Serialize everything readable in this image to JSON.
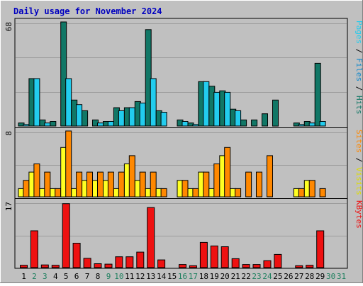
{
  "colors": {
    "page_background": "#c0c0c0",
    "panel_background": "#c0c0c0",
    "grid": "#9c9c9c",
    "title": "#0000c0",
    "axis_text": "#000000",
    "weekend_day": "#208060",
    "hits": "#117766",
    "pages": "#22ccee",
    "files": "#22ccee",
    "visits": "#ffff22",
    "sites": "#ff8800",
    "kbytes": "#ee1111",
    "hits_label": "#117766",
    "files_label": "#1188cc",
    "pages_label": "#22ccee",
    "visits_label": "#dddd00",
    "sites_label": "#ff8800",
    "kbytes_label": "#ee1111",
    "separator": "#000000"
  },
  "chart_data": {
    "type": "bar",
    "title": "Daily usage for November 2024",
    "x": [
      1,
      2,
      3,
      4,
      5,
      6,
      7,
      8,
      9,
      10,
      11,
      12,
      13,
      14,
      15,
      16,
      17,
      18,
      19,
      20,
      21,
      22,
      23,
      24,
      25,
      26,
      27,
      28,
      29,
      30,
      31
    ],
    "weekend_days": [
      2,
      3,
      9,
      10,
      16,
      17,
      23,
      24,
      30,
      31
    ],
    "panels": [
      {
        "name": "hits_files_pages",
        "ymax_label": "68",
        "ylim": [
          0,
          68
        ],
        "right_labels": [
          "Hits",
          "Files",
          "Pages"
        ],
        "series": [
          {
            "name": "Hits",
            "values": [
              2,
              31,
              4,
              3,
              68,
              17,
              10,
              4,
              3,
              12,
              12,
              16,
              63,
              10,
              0,
              4,
              2,
              29,
              26,
              23,
              11,
              4,
              4,
              8,
              17,
              0,
              2,
              3,
              41,
              0,
              0
            ]
          },
          {
            "name": "Files",
            "values": [
              0,
              0,
              0,
              0,
              0,
              0,
              0,
              0,
              0,
              0,
              0,
              0,
              0,
              0,
              0,
              0,
              0,
              0,
              0,
              0,
              0,
              0,
              0,
              0,
              0,
              0,
              0,
              0,
              0,
              0,
              0
            ]
          },
          {
            "name": "Pages",
            "values": [
              1,
              31,
              2,
              0,
              31,
              14,
              0,
              2,
              3,
              10,
              12,
              15,
              31,
              9,
              0,
              3,
              1,
              29,
              22,
              22,
              10,
              0,
              0,
              0,
              0,
              0,
              1,
              2,
              3,
              0,
              0
            ]
          }
        ]
      },
      {
        "name": "visits_sites",
        "ymax_label": "8",
        "ylim": [
          0,
          8
        ],
        "right_labels": [
          "Visits",
          "Sites"
        ],
        "series": [
          {
            "name": "Visits",
            "values": [
              1,
              3,
              1,
              1,
              6,
              1,
              2,
              2,
              2,
              1,
              4,
              2,
              1,
              1,
              0,
              2,
              1,
              3,
              1,
              5,
              1,
              0,
              0,
              0,
              0,
              0,
              1,
              2,
              0,
              0,
              0
            ]
          },
          {
            "name": "Sites",
            "values": [
              2,
              4,
              3,
              1,
              8,
              3,
              3,
              3,
              3,
              3,
              5,
              3,
              3,
              1,
              0,
              2,
              1,
              3,
              4,
              6,
              1,
              3,
              3,
              5,
              0,
              0,
              1,
              2,
              1,
              0,
              0
            ]
          }
        ]
      },
      {
        "name": "kbytes",
        "ymax_label": "17",
        "ylim": [
          0,
          17
        ],
        "right_labels": [
          "KBytes"
        ],
        "series": [
          {
            "name": "KBytes",
            "values": [
              0.6,
              9.5,
              0.7,
              0.6,
              16.5,
              6.3,
              2.4,
              1.0,
              0.9,
              2.8,
              2.8,
              4.0,
              15.5,
              2.0,
              0,
              0.8,
              0.5,
              6.5,
              5.6,
              5.4,
              2.3,
              0.8,
              0.8,
              1.8,
              3.4,
              0,
              0.5,
              0.6,
              9.5,
              0,
              0
            ]
          }
        ]
      }
    ]
  }
}
